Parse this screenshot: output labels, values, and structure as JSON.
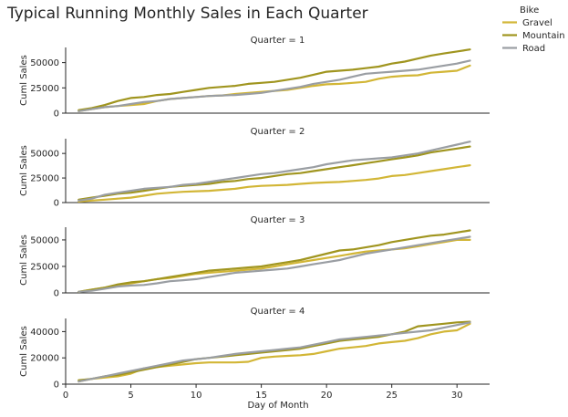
{
  "chart_data": {
    "type": "line",
    "title": "Typical Running Monthly Sales in Each Quarter",
    "xlabel": "Day of Month",
    "ylabel": "Cuml Sales",
    "xlim": [
      0,
      32.5
    ],
    "x_ticks": [
      0,
      5,
      10,
      15,
      20,
      25,
      30
    ],
    "legend": {
      "title": "Bike",
      "placement": "top-right",
      "entries": [
        {
          "name": "Gravel",
          "color": "#d2b636"
        },
        {
          "name": "Mountain",
          "color": "#a0951f"
        },
        {
          "name": "Road",
          "color": "#9a9ea3"
        }
      ]
    },
    "x": [
      1,
      2,
      3,
      4,
      5,
      6,
      7,
      8,
      9,
      10,
      11,
      12,
      13,
      14,
      15,
      16,
      17,
      18,
      19,
      20,
      21,
      22,
      23,
      24,
      25,
      26,
      27,
      28,
      29,
      30,
      31
    ],
    "facets": [
      {
        "title": "Quarter = 1",
        "ylim": [
          0,
          65000
        ],
        "y_ticks": [
          0,
          25000,
          50000
        ],
        "y_tick_labels": [
          "0",
          "25000",
          "50000"
        ],
        "series": [
          {
            "name": "Gravel",
            "values": [
              2000,
              4000,
              6000,
              7000,
              8000,
              9000,
              12000,
              14000,
              15000,
              16000,
              17000,
              17500,
              19000,
              20000,
              21000,
              22000,
              23000,
              25000,
              27000,
              28500,
              29000,
              30000,
              31000,
              34000,
              36000,
              37000,
              37500,
              40000,
              41000,
              42000,
              47000
            ]
          },
          {
            "name": "Mountain",
            "values": [
              3000,
              5000,
              8000,
              12000,
              15000,
              16000,
              18000,
              19000,
              21000,
              23000,
              25000,
              26000,
              27000,
              29000,
              30000,
              31000,
              33000,
              35000,
              38000,
              41000,
              42000,
              43000,
              44500,
              46000,
              49000,
              51000,
              54000,
              57000,
              59000,
              61000,
              63000
            ]
          },
          {
            "name": "Road",
            "values": [
              2000,
              4000,
              6000,
              7000,
              9000,
              11000,
              12000,
              14000,
              15000,
              16000,
              17000,
              17500,
              18000,
              19000,
              20000,
              22000,
              24000,
              26000,
              29000,
              31000,
              33000,
              36000,
              39000,
              40000,
              41000,
              42000,
              43000,
              45000,
              47000,
              49000,
              52000
            ]
          }
        ]
      },
      {
        "title": "Quarter = 2",
        "ylim": [
          0,
          65000
        ],
        "y_ticks": [
          0,
          25000,
          50000
        ],
        "y_tick_labels": [
          "0",
          "25000",
          "50000"
        ],
        "series": [
          {
            "name": "Gravel",
            "values": [
              1000,
              2000,
              3000,
              4000,
              5000,
              7000,
              9000,
              10000,
              11000,
              11500,
              12000,
              13000,
              14000,
              16000,
              17000,
              17500,
              18000,
              19000,
              20000,
              20500,
              21000,
              22000,
              23000,
              24500,
              27000,
              28000,
              30000,
              32000,
              34000,
              36000,
              38000
            ]
          },
          {
            "name": "Mountain",
            "values": [
              3000,
              5000,
              7000,
              9000,
              10000,
              12000,
              14000,
              16000,
              17000,
              18000,
              19000,
              21000,
              22000,
              24000,
              25000,
              27000,
              29000,
              30000,
              32000,
              34000,
              36000,
              38000,
              40000,
              42000,
              44000,
              46000,
              48000,
              51000,
              53000,
              55000,
              57000
            ]
          },
          {
            "name": "Road",
            "values": [
              2000,
              4000,
              8000,
              10000,
              12000,
              14000,
              15000,
              16000,
              18000,
              19000,
              21000,
              23000,
              25000,
              27000,
              29000,
              30000,
              32000,
              34000,
              36000,
              39000,
              41000,
              43000,
              44000,
              45000,
              46000,
              48000,
              50000,
              53000,
              56000,
              59000,
              62000
            ]
          }
        ]
      },
      {
        "title": "Quarter = 3",
        "ylim": [
          0,
          62000
        ],
        "y_ticks": [
          0,
          25000,
          50000
        ],
        "y_tick_labels": [
          "0",
          "25000",
          "50000"
        ],
        "series": [
          {
            "name": "Gravel",
            "values": [
              1000,
              3000,
              5000,
              7000,
              9000,
              11000,
              13000,
              14000,
              16000,
              18000,
              19000,
              20000,
              21000,
              22000,
              23000,
              25000,
              27000,
              29000,
              31000,
              33000,
              35000,
              37000,
              39000,
              40000,
              41000,
              42000,
              44000,
              46000,
              48000,
              50000,
              50000
            ]
          },
          {
            "name": "Mountain",
            "values": [
              1000,
              3000,
              5000,
              8000,
              10000,
              11000,
              13000,
              15000,
              17000,
              19000,
              21000,
              22000,
              23000,
              24000,
              25000,
              27000,
              29000,
              31000,
              34000,
              37000,
              40000,
              41000,
              43000,
              45000,
              48000,
              50000,
              52000,
              54000,
              55000,
              57000,
              59000
            ]
          },
          {
            "name": "Road",
            "values": [
              1000,
              2000,
              4000,
              6000,
              7000,
              7500,
              9000,
              11000,
              12000,
              13000,
              15000,
              17000,
              19000,
              20000,
              21000,
              22000,
              23000,
              25000,
              27000,
              29000,
              31000,
              34000,
              37000,
              39000,
              41000,
              43000,
              45000,
              47000,
              49000,
              51000,
              53000
            ]
          }
        ]
      },
      {
        "title": "Quarter = 4",
        "ylim": [
          0,
          50000
        ],
        "y_ticks": [
          0,
          20000,
          40000
        ],
        "y_tick_labels": [
          "0",
          "20000",
          "40000"
        ],
        "series": [
          {
            "name": "Gravel",
            "values": [
              2000,
              4000,
              5000,
              6000,
              8000,
              12000,
              13000,
              14000,
              15000,
              16000,
              16500,
              16500,
              16500,
              17000,
              20000,
              21000,
              21500,
              22000,
              23000,
              25000,
              27000,
              28000,
              29000,
              31000,
              32000,
              33000,
              35000,
              38000,
              40000,
              41000,
              46000
            ]
          },
          {
            "name": "Mountain",
            "values": [
              3000,
              4000,
              6000,
              7000,
              9000,
              11000,
              13000,
              15000,
              17000,
              19000,
              20000,
              21000,
              22000,
              23000,
              24000,
              25000,
              26000,
              27000,
              29000,
              31000,
              33000,
              34000,
              35000,
              36000,
              38000,
              40000,
              44000,
              45000,
              46000,
              47000,
              47500
            ]
          },
          {
            "name": "Road",
            "values": [
              2000,
              4000,
              6000,
              8000,
              10000,
              12000,
              14000,
              16000,
              18000,
              19000,
              20000,
              21500,
              23000,
              24000,
              25000,
              26000,
              27000,
              28000,
              30000,
              32000,
              34000,
              35000,
              36000,
              37000,
              38000,
              39000,
              40000,
              41000,
              43000,
              45000,
              47000
            ]
          }
        ]
      }
    ]
  }
}
